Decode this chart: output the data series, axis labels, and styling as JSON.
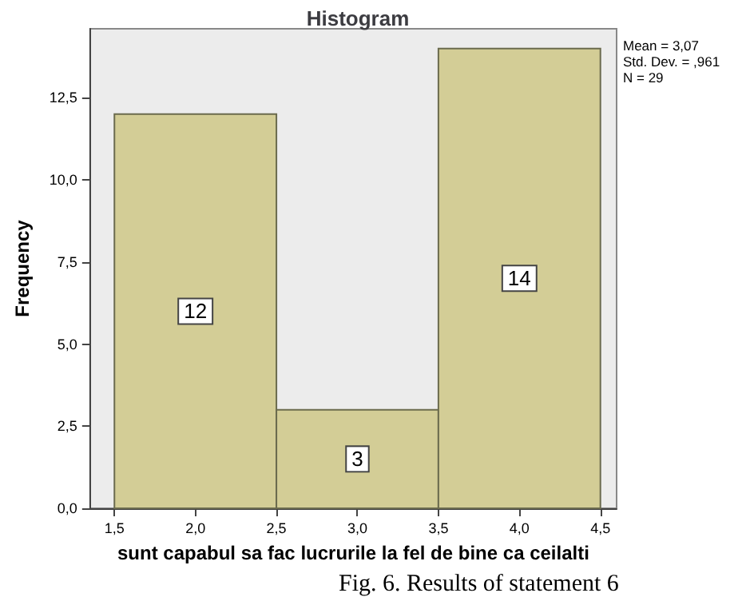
{
  "chart_data": {
    "type": "histogram",
    "title": "Histogram",
    "xlabel": "sunt capabul sa fac lucrurile la fel de bine ca ceilalti",
    "ylabel": "Frequency",
    "bins": [
      1.5,
      2.5,
      3.5,
      4.5
    ],
    "values": [
      12,
      3,
      14
    ],
    "color": "#d3cd96",
    "data_labels": true,
    "xlim": [
      1.35,
      4.6
    ],
    "xticks": [
      {
        "value": 1.5,
        "label": "1,5"
      },
      {
        "value": 2,
        "label": "2,0"
      },
      {
        "value": 2.5,
        "label": "2,5"
      },
      {
        "value": 3,
        "label": "3,0"
      },
      {
        "value": 3.5,
        "label": "3,5"
      },
      {
        "value": 4,
        "label": "4,0"
      },
      {
        "value": 4.5,
        "label": "4,5"
      }
    ],
    "ylim": [
      0,
      14.6
    ],
    "yticks": [
      {
        "value": 0,
        "label": "0,0"
      },
      {
        "value": 2.5,
        "label": "2,5"
      },
      {
        "value": 5,
        "label": "5,0"
      },
      {
        "value": 7.5,
        "label": "7,5"
      },
      {
        "value": 10,
        "label": "10,0"
      },
      {
        "value": 12.5,
        "label": "12,5"
      }
    ],
    "grid": false,
    "annotations": [
      "Mean = 3,07",
      "Std. Dev. = ,961",
      "N = 29",
      "Fig. 6. Results of statement 6"
    ]
  }
}
